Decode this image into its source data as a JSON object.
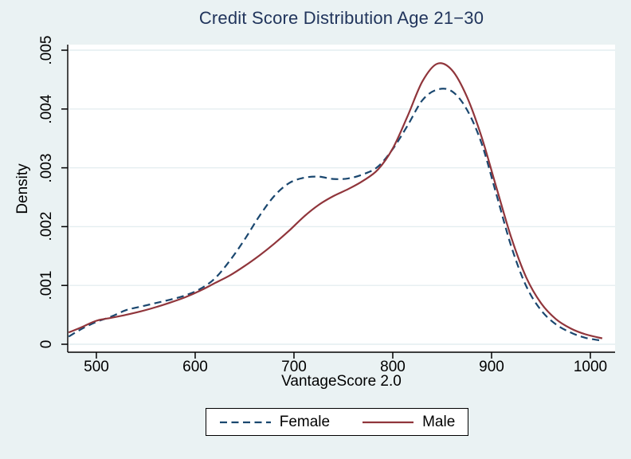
{
  "figure": {
    "background": "#eaf2f3",
    "plot_background": "#ffffff",
    "grid_color": "#e4eef0",
    "axis_color": "#000000",
    "title_color": "#21355c",
    "text_color": "#000000",
    "legend_background": "#ffffff",
    "legend_border_color": "#000000"
  },
  "chart_data": {
    "type": "line",
    "title": "Credit Score Distribution Age 21−30",
    "xlabel": "VantageScore 2.0",
    "ylabel": "Density",
    "x_ticks": [
      500,
      600,
      700,
      800,
      900,
      1000
    ],
    "x_tick_labels": [
      "500",
      "600",
      "700",
      "800",
      "900",
      "1000"
    ],
    "y_ticks": [
      0,
      0.001,
      0.002,
      0.003,
      0.004,
      0.005
    ],
    "y_tick_labels": [
      "0",
      ".001",
      ".002",
      ".003",
      ".004",
      ".005"
    ],
    "xlim": [
      471,
      1025
    ],
    "ylim": [
      0,
      0.005
    ],
    "grid": "horizontal-y",
    "legend_position": "bottom-center",
    "x": [
      472,
      485,
      500,
      515,
      530,
      545,
      560,
      575,
      590,
      605,
      620,
      635,
      650,
      665,
      680,
      695,
      710,
      725,
      740,
      755,
      770,
      785,
      800,
      815,
      830,
      845,
      860,
      875,
      890,
      905,
      920,
      935,
      950,
      965,
      980,
      995,
      1012
    ],
    "series": [
      {
        "name": "Female",
        "color": "#1a476f",
        "line_style": "dashed",
        "values": [
          0.00013,
          0.00026,
          0.00038,
          0.00047,
          0.00058,
          0.00064,
          0.0007,
          0.00076,
          0.00083,
          0.00094,
          0.00112,
          0.00142,
          0.00178,
          0.00218,
          0.00252,
          0.00274,
          0.00283,
          0.00285,
          0.00281,
          0.00282,
          0.00289,
          0.00302,
          0.00332,
          0.00372,
          0.00415,
          0.00433,
          0.0043,
          0.00399,
          0.00341,
          0.00254,
          0.00166,
          0.00099,
          0.00058,
          0.00034,
          0.0002,
          0.00011,
          6e-05
        ]
      },
      {
        "name": "Male",
        "color": "#90353b",
        "line_style": "solid",
        "values": [
          0.0002,
          0.00029,
          0.0004,
          0.00045,
          0.0005,
          0.00056,
          0.00063,
          0.00071,
          0.0008,
          0.00091,
          0.00104,
          0.00117,
          0.00133,
          0.00151,
          0.00171,
          0.00193,
          0.00217,
          0.00237,
          0.00252,
          0.00264,
          0.00278,
          0.00297,
          0.00333,
          0.00388,
          0.00447,
          0.00477,
          0.00466,
          0.00421,
          0.00352,
          0.00266,
          0.00181,
          0.00114,
          0.0007,
          0.00043,
          0.00027,
          0.00017,
          0.0001
        ]
      }
    ]
  }
}
